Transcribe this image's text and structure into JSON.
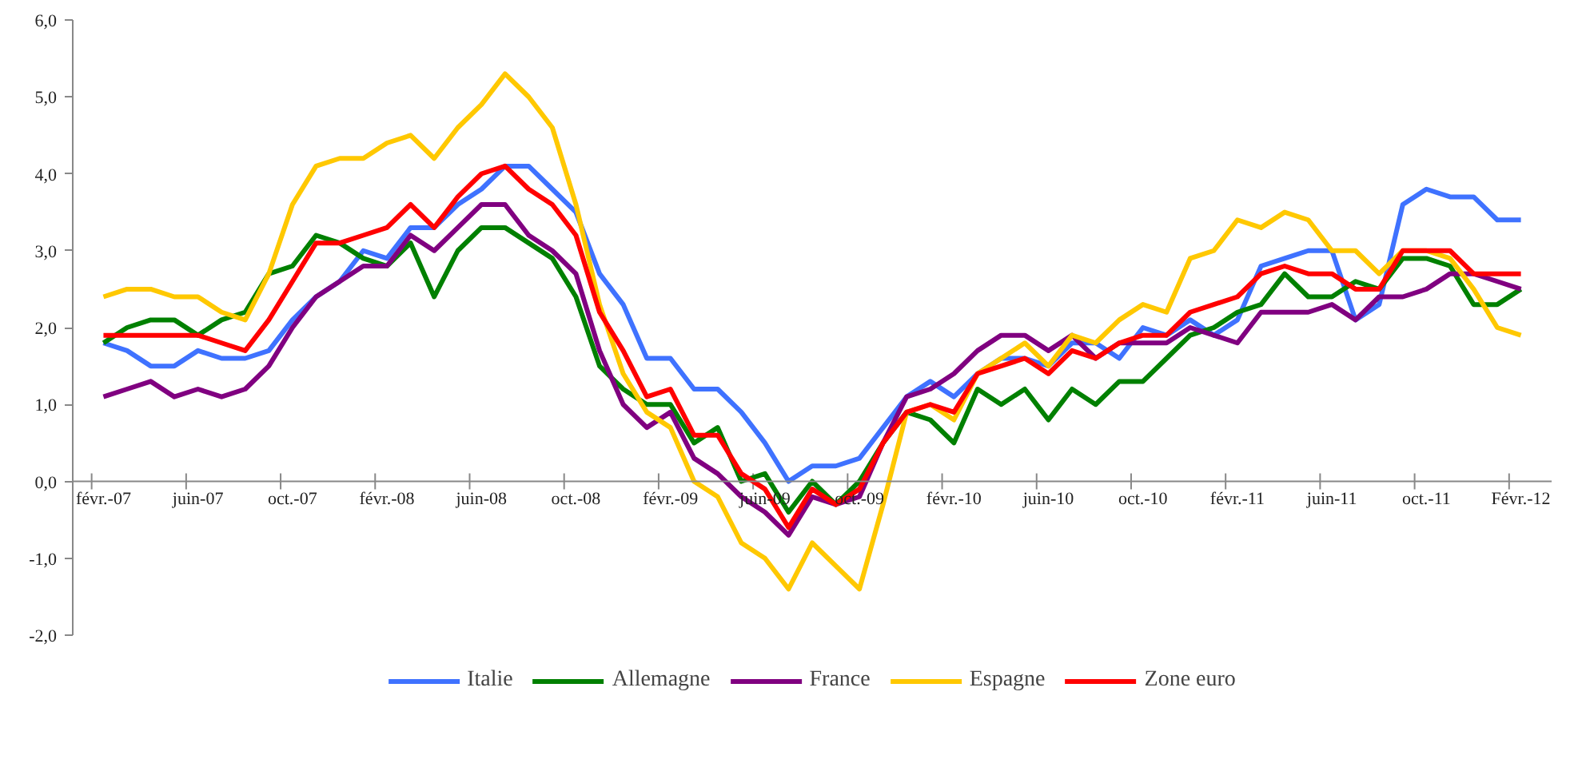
{
  "chart_data": {
    "type": "line",
    "categories": [
      "févr.-07",
      null,
      null,
      null,
      "juin-07",
      null,
      null,
      null,
      "oct.-07",
      null,
      null,
      null,
      "févr.-08",
      null,
      null,
      null,
      "juin-08",
      null,
      null,
      null,
      "oct.-08",
      null,
      null,
      null,
      "févr.-09",
      null,
      null,
      null,
      "juin-09",
      null,
      null,
      null,
      "oct.-09",
      null,
      null,
      null,
      "févr.-10",
      null,
      null,
      null,
      "juin-10",
      null,
      null,
      null,
      "oct.-10",
      null,
      null,
      null,
      "févr.-11",
      null,
      null,
      null,
      "juin-11",
      null,
      null,
      null,
      "oct.-11",
      null,
      null,
      null,
      "Févr.-12"
    ],
    "series": [
      {
        "name": "Italie",
        "color": "#3f72ff",
        "values": [
          1.8,
          1.7,
          1.5,
          1.5,
          1.7,
          1.6,
          1.6,
          1.7,
          2.1,
          2.4,
          2.6,
          3.0,
          2.9,
          3.3,
          3.3,
          3.6,
          3.8,
          4.1,
          4.1,
          3.8,
          3.5,
          2.7,
          2.3,
          1.6,
          1.6,
          1.2,
          1.2,
          0.9,
          0.5,
          0.0,
          0.2,
          0.2,
          0.3,
          0.7,
          1.1,
          1.3,
          1.1,
          1.4,
          1.6,
          1.6,
          1.5,
          1.8,
          1.8,
          1.6,
          2.0,
          1.9,
          2.1,
          1.9,
          2.1,
          2.8,
          2.9,
          3.0,
          3.0,
          2.1,
          2.3,
          3.6,
          3.8,
          3.7,
          3.7,
          3.4,
          3.4
        ]
      },
      {
        "name": "Allemagne",
        "color": "#008000",
        "values": [
          1.8,
          2.0,
          2.1,
          2.1,
          1.9,
          2.1,
          2.2,
          2.7,
          2.8,
          3.2,
          3.1,
          2.9,
          2.8,
          3.1,
          2.4,
          3.0,
          3.3,
          3.3,
          3.1,
          2.9,
          2.4,
          1.5,
          1.2,
          1.0,
          1.0,
          0.5,
          0.7,
          0.0,
          0.1,
          -0.4,
          0.0,
          -0.3,
          0.0,
          0.5,
          0.9,
          0.8,
          0.5,
          1.2,
          1.0,
          1.2,
          0.8,
          1.2,
          1.0,
          1.3,
          1.3,
          1.6,
          1.9,
          2.0,
          2.2,
          2.3,
          2.7,
          2.4,
          2.4,
          2.6,
          2.5,
          2.9,
          2.9,
          2.8,
          2.3,
          2.3,
          2.5
        ]
      },
      {
        "name": "France",
        "color": "#800080",
        "values": [
          1.1,
          1.2,
          1.3,
          1.1,
          1.2,
          1.1,
          1.2,
          1.5,
          2.0,
          2.4,
          2.6,
          2.8,
          2.8,
          3.2,
          3.0,
          3.3,
          3.6,
          3.6,
          3.2,
          3.0,
          2.7,
          1.7,
          1.0,
          0.7,
          0.9,
          0.3,
          0.1,
          -0.2,
          -0.4,
          -0.7,
          -0.2,
          -0.3,
          -0.2,
          0.5,
          1.1,
          1.2,
          1.4,
          1.7,
          1.9,
          1.9,
          1.7,
          1.9,
          1.6,
          1.8,
          1.8,
          1.8,
          2.0,
          1.9,
          1.8,
          2.2,
          2.2,
          2.2,
          2.3,
          2.1,
          2.4,
          2.4,
          2.5,
          2.7,
          2.7,
          2.6,
          2.5
        ]
      },
      {
        "name": "Espagne",
        "color": "#ffc800",
        "values": [
          2.4,
          2.5,
          2.5,
          2.4,
          2.4,
          2.2,
          2.1,
          2.7,
          3.6,
          4.1,
          4.2,
          4.2,
          4.4,
          4.5,
          4.2,
          4.6,
          4.9,
          5.3,
          5.0,
          4.6,
          3.6,
          2.3,
          1.4,
          0.9,
          0.7,
          0.0,
          -0.2,
          -0.8,
          -1.0,
          -1.4,
          -0.8,
          -1.1,
          -1.4,
          -0.3,
          0.9,
          1.0,
          0.8,
          1.4,
          1.6,
          1.8,
          1.5,
          1.9,
          1.8,
          2.1,
          2.3,
          2.2,
          2.9,
          3.0,
          3.4,
          3.3,
          3.5,
          3.4,
          3.0,
          3.0,
          2.7,
          3.0,
          3.0,
          2.9,
          2.5,
          2.0,
          1.9
        ]
      },
      {
        "name": "Zone euro",
        "color": "#ff0000",
        "values": [
          1.9,
          1.9,
          1.9,
          1.9,
          1.9,
          1.8,
          1.7,
          2.1,
          2.6,
          3.1,
          3.1,
          3.2,
          3.3,
          3.6,
          3.3,
          3.7,
          4.0,
          4.1,
          3.8,
          3.6,
          3.2,
          2.2,
          1.7,
          1.1,
          1.2,
          0.6,
          0.6,
          0.1,
          -0.1,
          -0.6,
          -0.1,
          -0.3,
          -0.1,
          0.5,
          0.9,
          1.0,
          0.9,
          1.4,
          1.5,
          1.6,
          1.4,
          1.7,
          1.6,
          1.8,
          1.9,
          1.9,
          2.2,
          2.3,
          2.4,
          2.7,
          2.8,
          2.7,
          2.7,
          2.5,
          2.5,
          3.0,
          3.0,
          3.0,
          2.7,
          2.7,
          2.7
        ]
      }
    ],
    "ylim": [
      -2,
      6
    ],
    "yticks": [
      {
        "value": -2,
        "label": "-2,0"
      },
      {
        "value": -1,
        "label": "-1,0"
      },
      {
        "value": 0,
        "label": "0,0"
      },
      {
        "value": 1,
        "label": "1,0"
      },
      {
        "value": 2,
        "label": "2,0"
      },
      {
        "value": 3,
        "label": "3,0"
      },
      {
        "value": 4,
        "label": "4,0"
      },
      {
        "value": 5,
        "label": "5,0"
      },
      {
        "value": 6,
        "label": "6,0"
      }
    ],
    "grid": false,
    "legend": "bottom",
    "marker": "none",
    "line_style": "solid"
  }
}
